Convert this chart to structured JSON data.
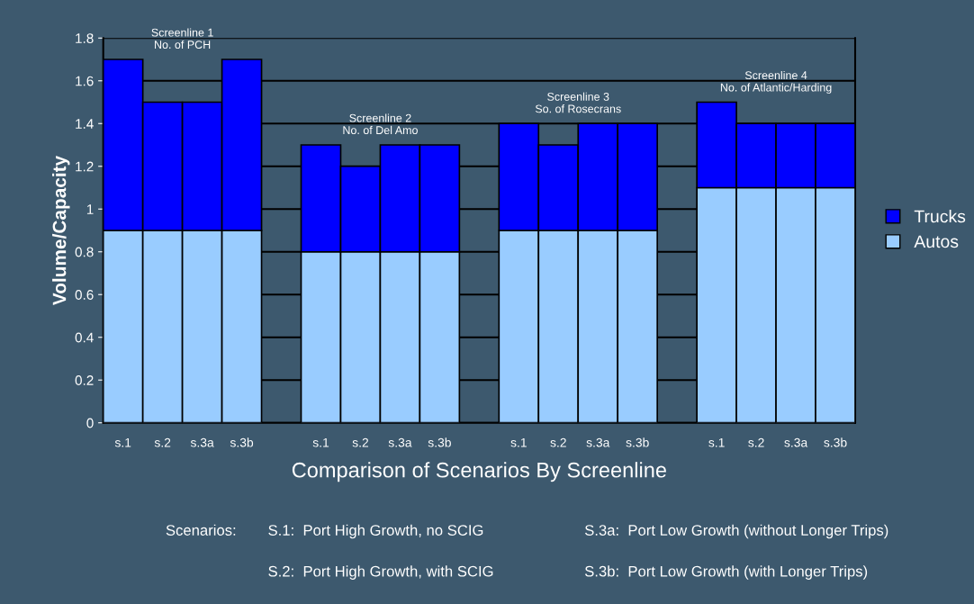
{
  "chart_data": {
    "type": "bar",
    "stacked": true,
    "xlabel": "Comparison of Scenarios By Screenline",
    "ylabel": "Volume/Capacity",
    "categories": [
      "s.1",
      "s.2",
      "s.3a",
      "s.3b",
      null,
      "s.1",
      "s.2",
      "s.3a",
      "s.3b",
      null,
      "s.1",
      "s.2",
      "s.3a",
      "s.3b",
      null,
      "s.1",
      "s.2",
      "s.3a",
      "s.3b"
    ],
    "series": [
      {
        "name": "Autos",
        "color": "#99ccff",
        "values": [
          0.9,
          0.9,
          0.9,
          0.9,
          null,
          0.8,
          0.8,
          0.8,
          0.8,
          null,
          0.9,
          0.9,
          0.9,
          0.9,
          null,
          1.1,
          1.1,
          1.1,
          1.1
        ]
      },
      {
        "name": "Trucks",
        "color": "#0000ff",
        "values": [
          0.8,
          0.6,
          0.6,
          0.8,
          null,
          0.5,
          0.4,
          0.5,
          0.5,
          null,
          0.5,
          0.4,
          0.5,
          0.5,
          null,
          0.4,
          0.3,
          0.3,
          0.3
        ]
      }
    ],
    "ylim": [
      0,
      1.8
    ],
    "yticks": [
      0,
      0.2,
      0.4,
      0.6,
      0.8,
      1,
      1.2,
      1.4,
      1.6,
      1.8
    ],
    "grid": "y",
    "legend": "right",
    "annotations": [
      "Screenline 1\nNo. of PCH",
      "Screenline 2\nNo. of Del Amo",
      "Screenline 3\nSo. of Rosecrans",
      "Screenline 4\nNo. of Atlantic/Harding",
      "Scenarios:",
      "S.1:  Port High Growth, no SCIG",
      "S.2:  Port High Growth, with SCIG",
      "S.3a:  Port Low Growth (without Longer Trips)",
      "S.3b:  Port Low Growth (with Longer Trips)"
    ]
  }
}
